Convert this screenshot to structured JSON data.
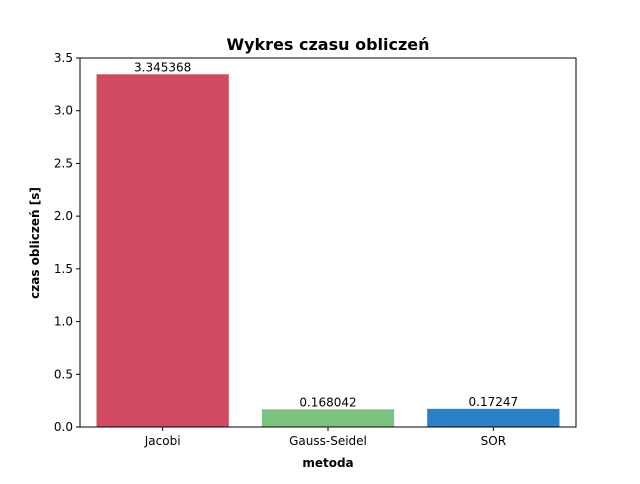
{
  "chart_data": {
    "type": "bar",
    "title": "Wykres czasu obliczeń",
    "xlabel": "metoda",
    "ylabel": "czas obliczeń [s]",
    "categories": [
      "Jacobi",
      "Gauss-Seidel",
      "SOR"
    ],
    "values": [
      3.345368,
      0.168042,
      0.17247
    ],
    "value_labels": [
      "3.345368",
      "0.168042",
      "0.17247"
    ],
    "colors": [
      "#d14a62",
      "#7bc47f",
      "#2a81c8"
    ],
    "ylim": [
      0,
      3.5
    ],
    "yticks": [
      0.0,
      0.5,
      1.0,
      1.5,
      2.0,
      2.5,
      3.0,
      3.5
    ],
    "ytick_labels": [
      "0.0",
      "0.5",
      "1.0",
      "1.5",
      "2.0",
      "2.5",
      "3.0",
      "3.5"
    ],
    "grid": false,
    "legend": "none"
  }
}
